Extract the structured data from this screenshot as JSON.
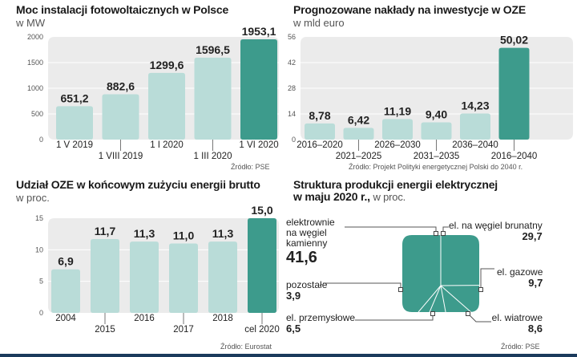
{
  "colors": {
    "bar": "#b9dcd8",
    "highlight": "#3d9b8c",
    "plotbg": "#ebebeb",
    "grid": "#ffffff"
  },
  "chart_data": [
    {
      "type": "bar",
      "title": "Moc instalacji fotowoltaicznych w Polsce",
      "subtitle": "w MW",
      "categories": [
        "1 V 2019",
        "1 VIII 2019",
        "1 I 2020",
        "1 III 2020",
        "1 VI 2020"
      ],
      "values": [
        651.2,
        882.6,
        1299.6,
        1596.5,
        1953.1
      ],
      "value_labels": [
        "651,2",
        "882,6",
        "1299,6",
        "1596,5",
        "1953,1"
      ],
      "ylim": [
        0,
        2000
      ],
      "yticks": [
        "0",
        "500",
        "1000",
        "1500",
        "2000"
      ],
      "highlight_index": 4,
      "source": "Źródło: PSE"
    },
    {
      "type": "bar",
      "title": "Prognozowane nakłady na inwestycje w OZE",
      "subtitle": "w mld euro",
      "categories": [
        "2016–2020",
        "2021–2025",
        "2026–2030",
        "2031–2035",
        "2036–2040",
        "2016–2040"
      ],
      "values": [
        8.78,
        6.42,
        11.19,
        9.4,
        14.23,
        50.02
      ],
      "value_labels": [
        "8,78",
        "6,42",
        "11,19",
        "9,40",
        "14,23",
        "50,02"
      ],
      "ylim": [
        0,
        56
      ],
      "yticks": [
        "0",
        "14",
        "28",
        "42",
        "56"
      ],
      "highlight_index": 5,
      "source": "Źródło: Projekt Polityki energetycznej Polski do 2040 r."
    },
    {
      "type": "bar",
      "title": "Udział OZE w końcowym zużyciu energii brutto",
      "subtitle": "w proc.",
      "categories": [
        "2004",
        "2015",
        "2016",
        "2017",
        "2018",
        "cel 2020"
      ],
      "values": [
        6.9,
        11.7,
        11.3,
        11.0,
        11.3,
        15.0
      ],
      "value_labels": [
        "6,9",
        "11,7",
        "11,3",
        "11,0",
        "11,3",
        "15,0"
      ],
      "ylim": [
        0,
        15
      ],
      "yticks": [
        "0",
        "5",
        "10",
        "15"
      ],
      "highlight_index": 5,
      "source": "Źródło: Eurostat"
    },
    {
      "type": "pie",
      "title": "Struktura produkcji energii elektrycznej",
      "title_line2": "w maju 2020 r.,",
      "subtitle": "w proc.",
      "slices": [
        {
          "label": "elektrownie na węgiel kamienny",
          "value": 41.6,
          "value_label": "41,6"
        },
        {
          "label": "el. na węgiel brunatny",
          "value": 29.7,
          "value_label": "29,7"
        },
        {
          "label": "el. gazowe",
          "value": 9.7,
          "value_label": "9,7"
        },
        {
          "label": "el. wiatrowe",
          "value": 8.6,
          "value_label": "8,6"
        },
        {
          "label": "el. przemysłowe",
          "value": 6.5,
          "value_label": "6,5"
        },
        {
          "label": "pozostałe",
          "value": 3.9,
          "value_label": "3,9"
        }
      ],
      "pie_labels": {
        "kamienny_l1": "elektrownie",
        "kamienny_l2": "na węgiel",
        "kamienny_l3": "kamienny"
      },
      "source": "Źródło: PSE"
    }
  ]
}
